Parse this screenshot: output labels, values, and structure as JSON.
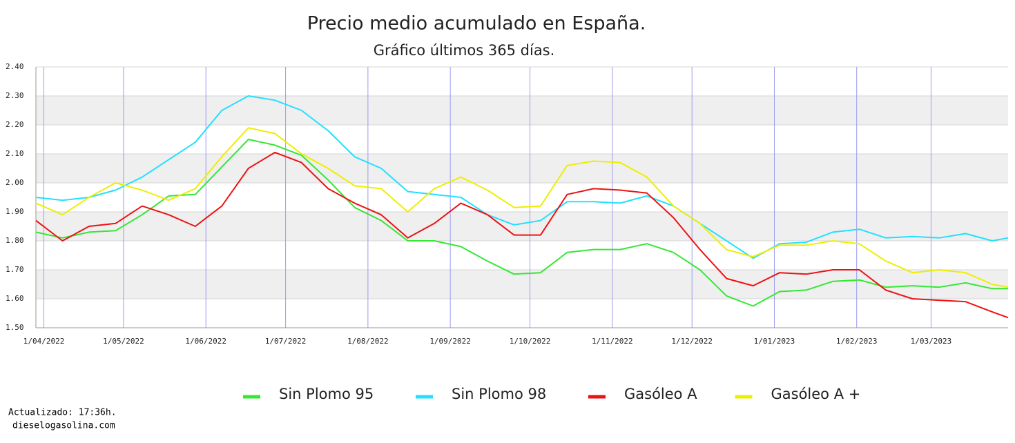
{
  "chart_data": {
    "type": "line",
    "title": "Precio medio acumulado en España.",
    "subtitle": "Gráfico últimos 365 días.",
    "x": [
      "2022-03-29",
      "2022-04-08",
      "2022-04-18",
      "2022-04-28",
      "2022-05-08",
      "2022-05-18",
      "2022-05-28",
      "2022-06-07",
      "2022-06-17",
      "2022-06-27",
      "2022-07-07",
      "2022-07-17",
      "2022-07-27",
      "2022-08-06",
      "2022-08-16",
      "2022-08-26",
      "2022-09-05",
      "2022-09-15",
      "2022-09-25",
      "2022-10-05",
      "2022-10-15",
      "2022-10-25",
      "2022-11-04",
      "2022-11-14",
      "2022-11-24",
      "2022-12-04",
      "2022-12-14",
      "2022-12-24",
      "2023-01-03",
      "2023-01-13",
      "2023-01-23",
      "2023-02-02",
      "2023-02-12",
      "2023-02-22",
      "2023-03-04",
      "2023-03-14",
      "2023-03-24",
      "2023-03-30"
    ],
    "series": [
      {
        "name": "Sin Plomo 95",
        "color": "#33e833",
        "values": [
          1.83,
          1.81,
          1.83,
          1.835,
          1.89,
          1.955,
          1.96,
          2.055,
          2.15,
          2.13,
          2.095,
          2.01,
          1.915,
          1.87,
          1.8,
          1.8,
          1.78,
          1.73,
          1.685,
          1.69,
          1.76,
          1.77,
          1.77,
          1.79,
          1.76,
          1.7,
          1.61,
          1.575,
          1.625,
          1.63,
          1.66,
          1.665,
          1.64,
          1.645,
          1.64,
          1.655,
          1.635,
          1.635
        ]
      },
      {
        "name": "Sin Plomo 98",
        "color": "#22e0ff",
        "values": [
          1.95,
          1.94,
          1.95,
          1.975,
          2.02,
          2.08,
          2.14,
          2.25,
          2.3,
          2.285,
          2.25,
          2.18,
          2.09,
          2.05,
          1.97,
          1.96,
          1.95,
          1.89,
          1.855,
          1.87,
          1.935,
          1.935,
          1.93,
          1.955,
          1.92,
          1.86,
          1.8,
          1.74,
          1.79,
          1.795,
          1.83,
          1.84,
          1.81,
          1.815,
          1.81,
          1.825,
          1.8,
          1.81
        ]
      },
      {
        "name": "Gasóleo A",
        "color": "#ee1111",
        "values": [
          1.87,
          1.8,
          1.85,
          1.86,
          1.92,
          1.89,
          1.85,
          1.92,
          2.05,
          2.105,
          2.07,
          1.98,
          1.93,
          1.89,
          1.81,
          1.86,
          1.93,
          1.89,
          1.82,
          1.82,
          1.96,
          1.98,
          1.975,
          1.965,
          1.88,
          1.77,
          1.67,
          1.645,
          1.69,
          1.685,
          1.7,
          1.7,
          1.63,
          1.6,
          1.595,
          1.59,
          1.555,
          1.535
        ]
      },
      {
        "name": "Gasóleo A +",
        "color": "#eeee00",
        "values": [
          1.93,
          1.89,
          1.95,
          2.0,
          1.975,
          1.94,
          1.98,
          2.09,
          2.19,
          2.17,
          2.1,
          2.05,
          1.99,
          1.98,
          1.9,
          1.98,
          2.02,
          1.975,
          1.915,
          1.92,
          2.06,
          2.075,
          2.07,
          2.02,
          1.92,
          1.86,
          1.77,
          1.745,
          1.785,
          1.785,
          1.8,
          1.79,
          1.73,
          1.69,
          1.7,
          1.69,
          1.65,
          1.64
        ]
      }
    ],
    "xlim": [
      "2022-03-29",
      "2023-03-30"
    ],
    "xticks": [
      {
        "value": "2022-04-01",
        "label": "1/04/2022"
      },
      {
        "value": "2022-05-01",
        "label": "1/05/2022"
      },
      {
        "value": "2022-06-01",
        "label": "1/06/2022"
      },
      {
        "value": "2022-07-01",
        "label": "1/07/2022"
      },
      {
        "value": "2022-08-01",
        "label": "1/08/2022"
      },
      {
        "value": "2022-09-01",
        "label": "1/09/2022"
      },
      {
        "value": "2022-10-01",
        "label": "1/10/2022"
      },
      {
        "value": "2022-11-01",
        "label": "1/11/2022"
      },
      {
        "value": "2022-12-01",
        "label": "1/12/2022"
      },
      {
        "value": "2023-01-01",
        "label": "1/01/2023"
      },
      {
        "value": "2023-02-01",
        "label": "1/02/2023"
      },
      {
        "value": "2023-03-01",
        "label": "1/03/2023"
      }
    ],
    "ylim": [
      1.5,
      2.4
    ],
    "yticks": [
      {
        "value": 1.5,
        "label": "1.50"
      },
      {
        "value": 1.6,
        "label": "1.60"
      },
      {
        "value": 1.7,
        "label": "1.70"
      },
      {
        "value": 1.8,
        "label": "1.80"
      },
      {
        "value": 1.9,
        "label": "1.90"
      },
      {
        "value": 2.0,
        "label": "2.00"
      },
      {
        "value": 2.1,
        "label": "2.10"
      },
      {
        "value": 2.2,
        "label": "2.20"
      },
      {
        "value": 2.3,
        "label": "2.30"
      },
      {
        "value": 2.4,
        "label": "2.40"
      }
    ],
    "grid": true,
    "legend_position": "bottom",
    "footer": [
      "Actualizado: 17:36h.",
      "dieselogasolina.com"
    ]
  }
}
